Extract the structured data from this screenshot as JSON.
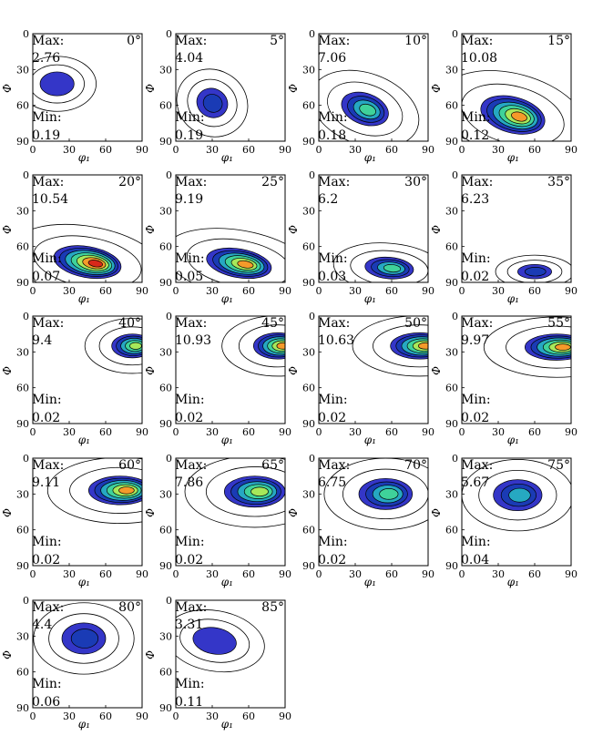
{
  "figure_title": "",
  "colors": {
    "axis": "#000000",
    "contour_line": "#000000",
    "colormap": [
      "#3436c8",
      "#1a3bb5",
      "#1f6fcf",
      "#26a8c2",
      "#3fd29a",
      "#a8e85a",
      "#f0e04a",
      "#f59a2a",
      "#d8281a"
    ]
  },
  "chart_data": {
    "type": "contour_grid",
    "xlabel": "φ₁",
    "ylabel": "Φ",
    "xticks": [
      0,
      30,
      60,
      90
    ],
    "yticks": [
      0,
      30,
      60,
      90
    ],
    "xlim": [
      0,
      90
    ],
    "ylim": [
      0,
      90
    ],
    "y_inverted": true,
    "max_label": "Max:",
    "min_label": "Min:",
    "panels": [
      {
        "angle": "0°",
        "max": "2.76",
        "min": "0.19",
        "peak_phi1": 20,
        "peak_Phi": 42,
        "spread_phi1": 14,
        "spread_Phi": 10,
        "levels": 1,
        "tilt": 0
      },
      {
        "angle": "5°",
        "max": "4.04",
        "min": "0.19",
        "peak_phi1": 30,
        "peak_Phi": 58,
        "spread_phi1": 13,
        "spread_Phi": 12,
        "levels": 2,
        "tilt": 30
      },
      {
        "angle": "10°",
        "max": "7.06",
        "min": "0.18",
        "peak_phi1": 38,
        "peak_Phi": 63,
        "spread_phi1": 20,
        "spread_Phi": 13,
        "levels": 4,
        "tilt": 20
      },
      {
        "angle": "15°",
        "max": "10.08",
        "min": "0.12",
        "peak_phi1": 42,
        "peak_Phi": 68,
        "spread_phi1": 27,
        "spread_Phi": 15,
        "levels": 6,
        "tilt": 15
      },
      {
        "angle": "20°",
        "max": "10.54",
        "min": "0.07",
        "peak_phi1": 45,
        "peak_Phi": 73,
        "spread_phi1": 28,
        "spread_Phi": 13,
        "levels": 7,
        "tilt": 10
      },
      {
        "angle": "25°",
        "max": "9.19",
        "min": "0.05",
        "peak_phi1": 52,
        "peak_Phi": 74,
        "spread_phi1": 27,
        "spread_Phi": 12,
        "levels": 6,
        "tilt": 10
      },
      {
        "angle": "30°",
        "max": "6.2",
        "min": "0.03",
        "peak_phi1": 58,
        "peak_Phi": 78,
        "spread_phi1": 20,
        "spread_Phi": 9,
        "levels": 4,
        "tilt": 5
      },
      {
        "angle": "35°",
        "max": "6.23",
        "min": "0.02",
        "peak_phi1": 60,
        "peak_Phi": 81,
        "spread_phi1": 14,
        "spread_Phi": 6,
        "levels": 2,
        "tilt": 0
      },
      {
        "angle": "40°",
        "max": "9.4",
        "min": "0.02",
        "peak_phi1": 82,
        "peak_Phi": 25,
        "spread_phi1": 17,
        "spread_Phi": 10,
        "levels": 5,
        "tilt": 0
      },
      {
        "angle": "45°",
        "max": "10.93",
        "min": "0.02",
        "peak_phi1": 84,
        "peak_Phi": 25,
        "spread_phi1": 20,
        "spread_Phi": 11,
        "levels": 6,
        "tilt": 0
      },
      {
        "angle": "50°",
        "max": "10.63",
        "min": "0.02",
        "peak_phi1": 83,
        "peak_Phi": 25,
        "spread_phi1": 24,
        "spread_Phi": 11,
        "levels": 6,
        "tilt": 0
      },
      {
        "angle": "55°",
        "max": "9.97",
        "min": "0.02",
        "peak_phi1": 78,
        "peak_Phi": 26,
        "spread_phi1": 26,
        "spread_Phi": 11,
        "levels": 6,
        "tilt": 0
      },
      {
        "angle": "60°",
        "max": "9.11",
        "min": "0.02",
        "peak_phi1": 72,
        "peak_Phi": 27,
        "spread_phi1": 26,
        "spread_Phi": 12,
        "levels": 6,
        "tilt": 0
      },
      {
        "angle": "65°",
        "max": "7.86",
        "min": "0.02",
        "peak_phi1": 65,
        "peak_Phi": 28,
        "spread_phi1": 25,
        "spread_Phi": 13,
        "levels": 5,
        "tilt": 0
      },
      {
        "angle": "70°",
        "max": "6.75",
        "min": "0.02",
        "peak_phi1": 55,
        "peak_Phi": 30,
        "spread_phi1": 22,
        "spread_Phi": 13,
        "levels": 4,
        "tilt": 0
      },
      {
        "angle": "75°",
        "max": "5.67",
        "min": "0.04",
        "peak_phi1": 46,
        "peak_Phi": 31,
        "spread_phi1": 20,
        "spread_Phi": 13,
        "levels": 3,
        "tilt": 0
      },
      {
        "angle": "80°",
        "max": "4.4",
        "min": "0.06",
        "peak_phi1": 42,
        "peak_Phi": 32,
        "spread_phi1": 18,
        "spread_Phi": 13,
        "levels": 2,
        "tilt": 0
      },
      {
        "angle": "85°",
        "max": "3.31",
        "min": "0.11",
        "peak_phi1": 32,
        "peak_Phi": 34,
        "spread_phi1": 18,
        "spread_Phi": 11,
        "levels": 1,
        "tilt": 10
      }
    ]
  }
}
